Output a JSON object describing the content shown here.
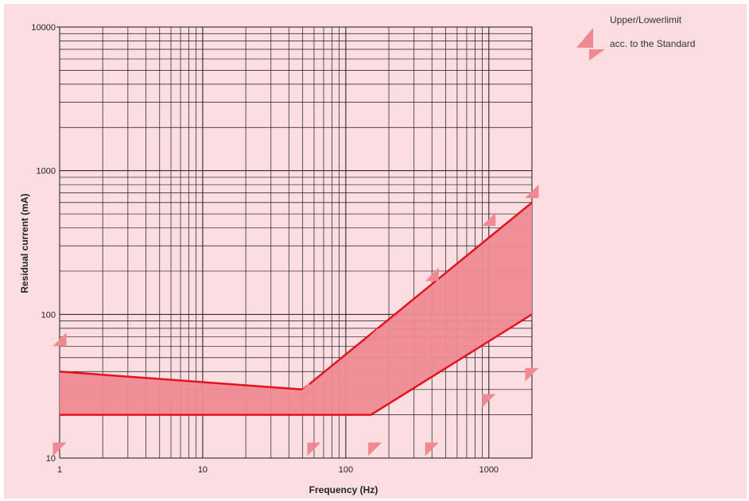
{
  "chart_data": {
    "type": "line",
    "title": "",
    "xlabel": "Frequency (Hz)",
    "ylabel": "Residual current (mA)",
    "x_scale": "log",
    "y_scale": "log",
    "xlim": [
      1,
      2000
    ],
    "ylim": [
      10,
      10000
    ],
    "x_ticks": [
      {
        "value": 1,
        "label": "1"
      },
      {
        "value": 10,
        "label": "10"
      },
      {
        "value": 100,
        "label": "100"
      },
      {
        "value": 1000,
        "label": "1000"
      }
    ],
    "y_ticks": [
      {
        "value": 10,
        "label": "10"
      },
      {
        "value": 100,
        "label": "100"
      },
      {
        "value": 1000,
        "label": "1000"
      },
      {
        "value": 10000,
        "label": "10000"
      }
    ],
    "grid": true,
    "series": [
      {
        "x": [
          1,
          50,
          2000
        ],
        "y": [
          40,
          30,
          600
        ]
      },
      {
        "x": [
          1,
          150,
          2000
        ],
        "y": [
          20,
          20,
          100
        ]
      }
    ],
    "band_color": "#ef8a92",
    "line_color": "#e3141f",
    "marker_color": "#f08a90",
    "markers": [
      {
        "x": 1,
        "y": 67,
        "dir": "up"
      },
      {
        "x": 50,
        "y": 30,
        "dir": "up"
      },
      {
        "x": 150,
        "y": 72,
        "dir": "up"
      },
      {
        "x": 400,
        "y": 190,
        "dir": "up"
      },
      {
        "x": 1000,
        "y": 460,
        "dir": "up"
      },
      {
        "x": 2000,
        "y": 720,
        "dir": "up"
      },
      {
        "x": 1,
        "y": 11.5,
        "dir": "down"
      },
      {
        "x": 60,
        "y": 11.5,
        "dir": "down"
      },
      {
        "x": 160,
        "y": 11.5,
        "dir": "down"
      },
      {
        "x": 400,
        "y": 11.5,
        "dir": "down"
      },
      {
        "x": 1000,
        "y": 25,
        "dir": "down"
      },
      {
        "x": 2000,
        "y": 38,
        "dir": "down"
      }
    ],
    "legend": {
      "position": "top-right",
      "line1": "Upper/Lowerlimit",
      "line2": "acc. to the Standard"
    }
  }
}
